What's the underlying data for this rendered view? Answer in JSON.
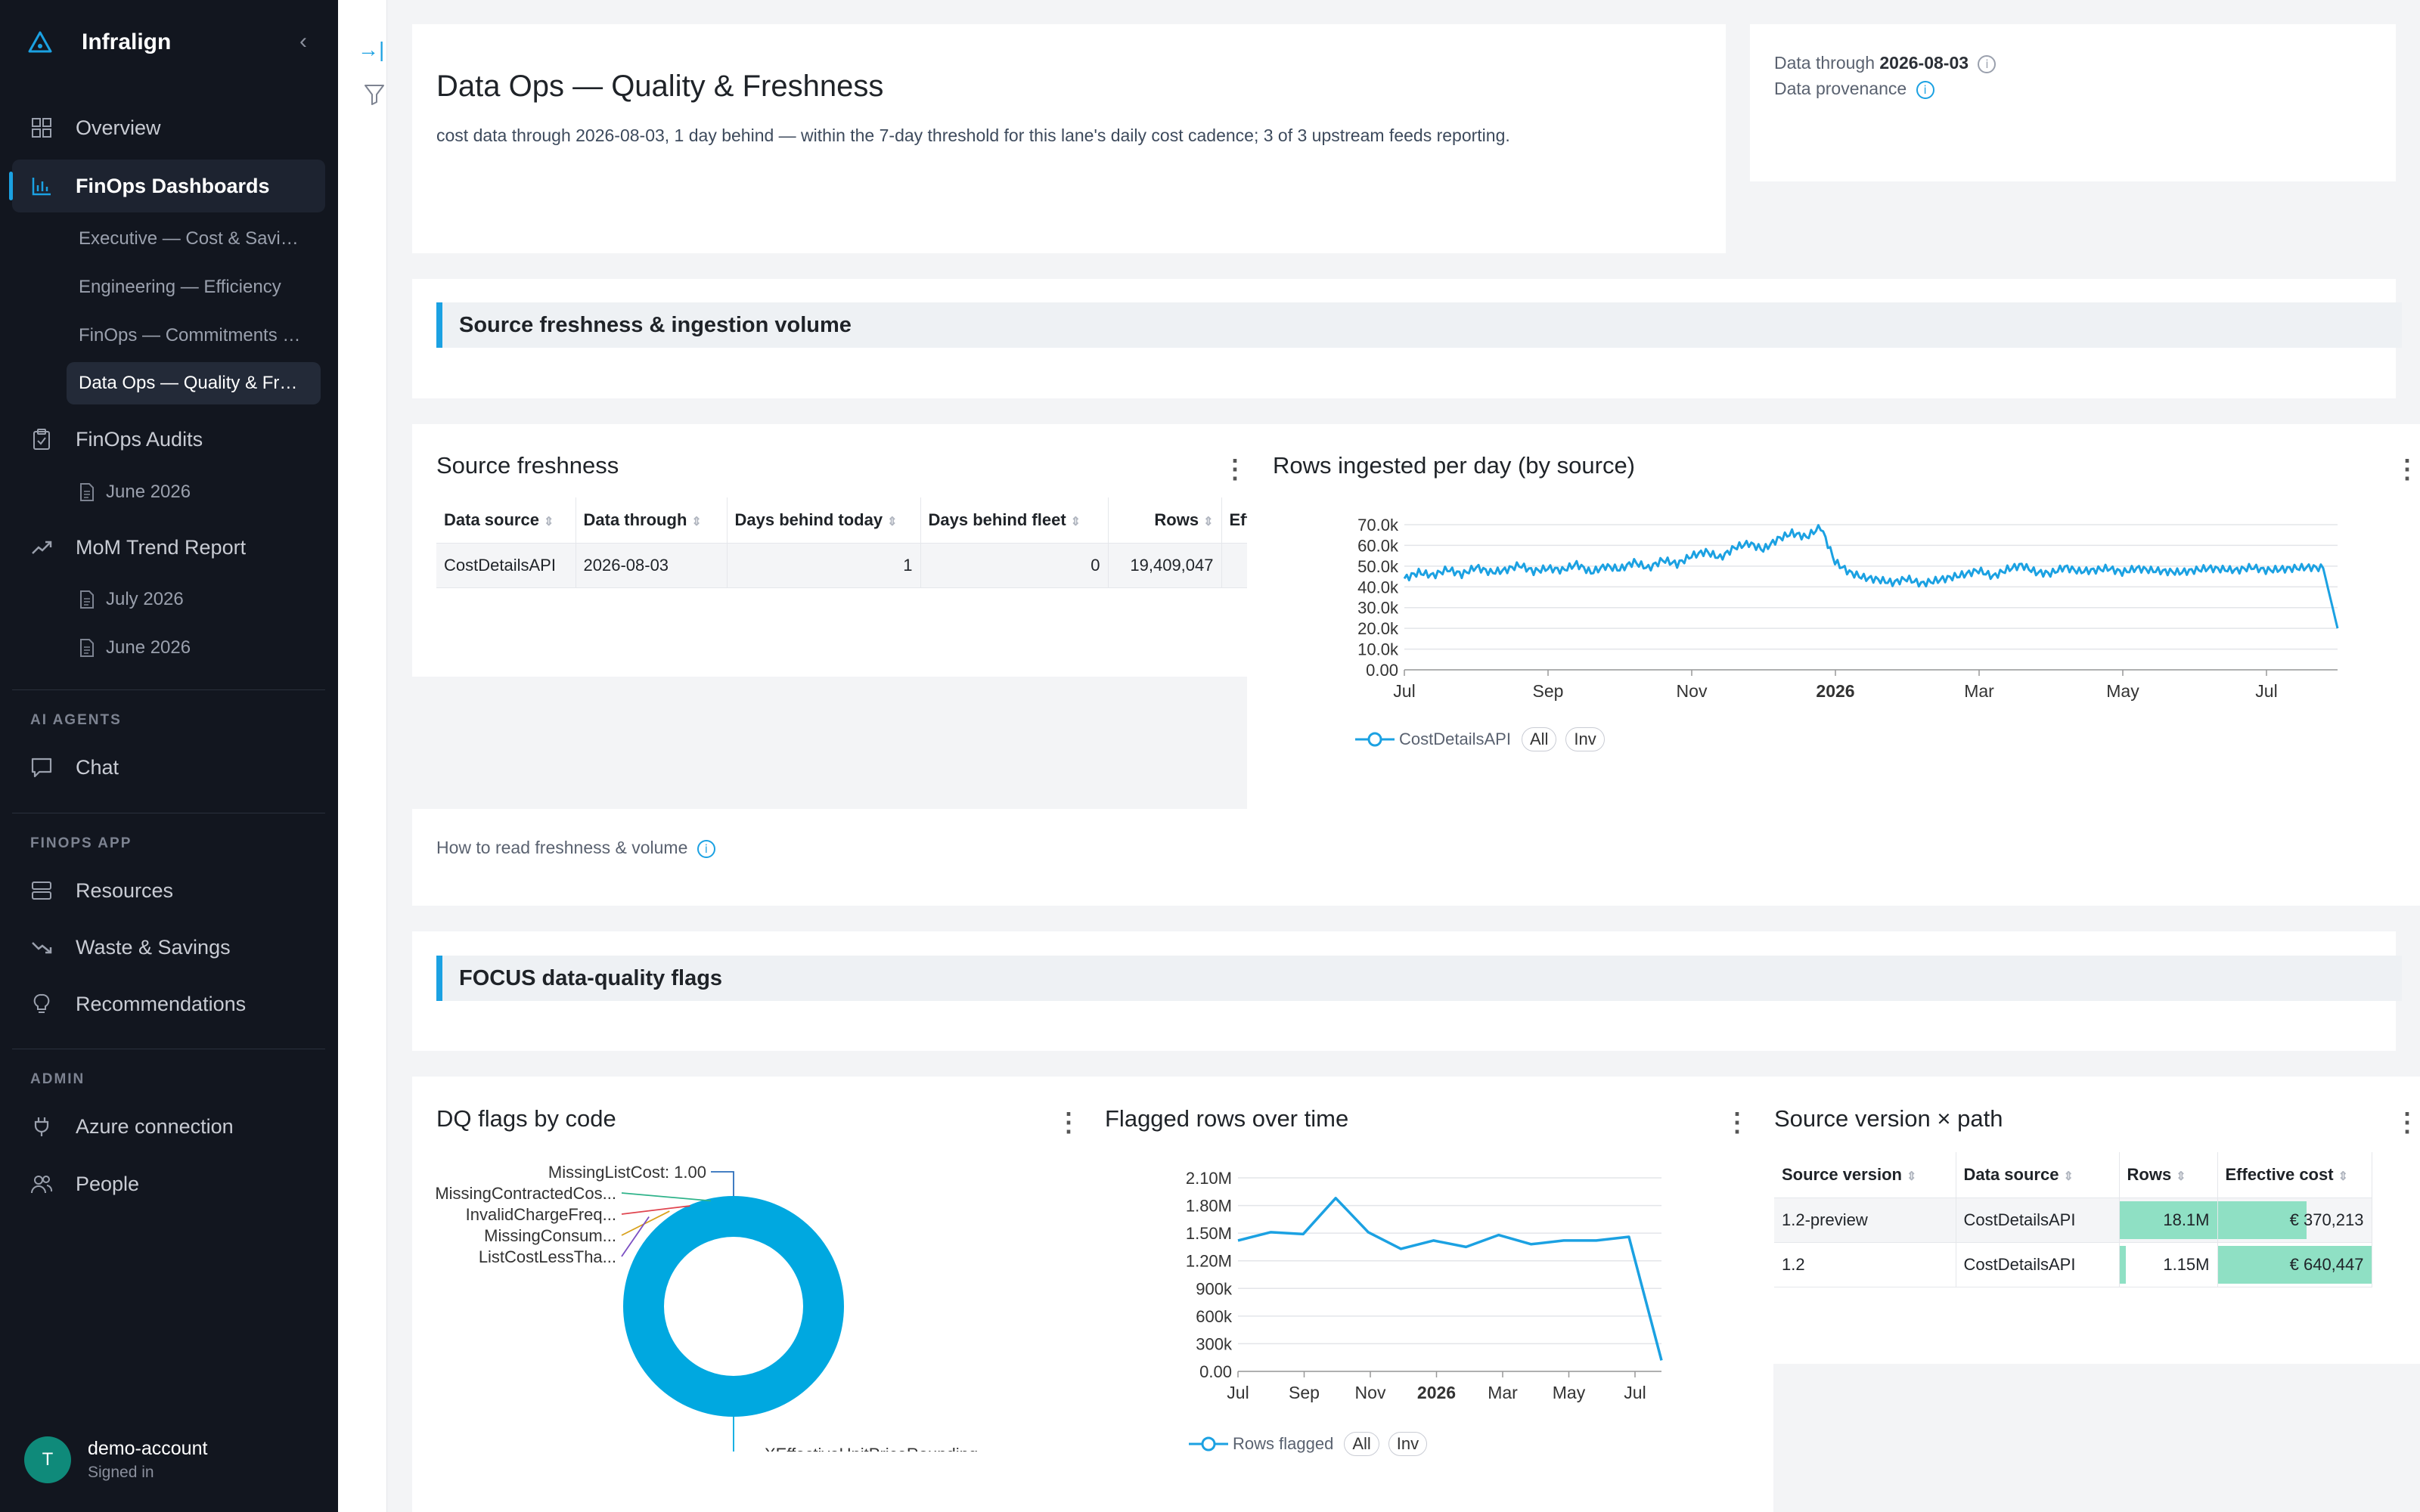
{
  "app": {
    "name": "Infralign"
  },
  "sidebar": {
    "overview": "Overview",
    "finops_dashboards": "FinOps Dashboards",
    "dashboards": [
      "Executive — Cost & Savings",
      "Engineering — Efficiency",
      "FinOps — Commitments & Rates",
      "Data Ops — Quality & Freshness"
    ],
    "finops_audits": "FinOps Audits",
    "audits": [
      "June 2026"
    ],
    "mom_trend": "MoM Trend Report",
    "mom_reports": [
      "July 2026",
      "June 2026"
    ],
    "section_ai": "AI AGENTS",
    "chat": "Chat",
    "section_app": "FINOPS APP",
    "resources": "Resources",
    "waste": "Waste & Savings",
    "recommendations": "Recommendations",
    "section_admin": "ADMIN",
    "azure": "Azure connection",
    "people": "People",
    "user": {
      "initial": "T",
      "name": "demo-account",
      "status": "Signed in"
    }
  },
  "header": {
    "title": "Data Ops — Quality & Freshness",
    "subtitle": "cost data through 2026-08-03, 1 day behind — within the 7-day threshold for this lane's daily cost cadence; 3 of 3 upstream feeds reporting.",
    "data_through_label": "Data through",
    "data_through_value": "2026-08-03",
    "provenance_label": "Data provenance"
  },
  "sections": {
    "freshness": "Source freshness & ingestion volume",
    "dq": "FOCUS data-quality flags",
    "howto": "How to read freshness & volume"
  },
  "freshness_table": {
    "title": "Source freshness",
    "columns": [
      "Data source",
      "Data through",
      "Days behind today",
      "Days behind fleet",
      "Rows",
      "Effec"
    ],
    "rows": [
      [
        "CostDetailsAPI",
        "2026-08-03",
        "1",
        "0",
        "19,409,047",
        ""
      ]
    ]
  },
  "version_table": {
    "title": "Source version × path",
    "columns": [
      "Source version",
      "Data source",
      "Rows",
      "Effective cost"
    ],
    "rows": [
      {
        "version": "1.2-preview",
        "source": "CostDetailsAPI",
        "rows": "18.1M",
        "rows_frac": 1.0,
        "cost": "€ 370,213",
        "cost_frac": 0.578
      },
      {
        "version": "1.2",
        "source": "CostDetailsAPI",
        "rows": "1.15M",
        "rows_frac": 0.064,
        "cost": "€ 640,447",
        "cost_frac": 1.0
      }
    ]
  },
  "legend": {
    "all": "All",
    "inv": "Inv"
  },
  "colors": {
    "accent": "#1ba1e2",
    "bar": "#8fe0c4",
    "sidebar": "#12161f"
  },
  "chart_data": [
    {
      "type": "line",
      "title": "Rows ingested per day (by source)",
      "x_ticks": [
        "Jul",
        "Sep",
        "Nov",
        "2026",
        "Mar",
        "May",
        "Jul"
      ],
      "y_ticks": [
        "0.00",
        "10.0k",
        "20.0k",
        "30.0k",
        "40.0k",
        "50.0k",
        "60.0k",
        "70.0k"
      ],
      "ylim": [
        0,
        70000
      ],
      "series": [
        {
          "name": "CostDetailsAPI",
          "values": [
            44000,
            47000,
            45500,
            48500,
            46000,
            49500,
            47000,
            48000,
            50500,
            47500,
            49000,
            48000,
            51000,
            47000,
            50000,
            48500,
            52000,
            49000,
            53000,
            51000,
            55000,
            57000,
            54000,
            59000,
            61000,
            58000,
            63000,
            66000,
            64000,
            69000,
            52000,
            47000,
            44500,
            43500,
            42000,
            44000,
            41500,
            43000,
            44500,
            46000,
            48000,
            45000,
            48500,
            50500,
            47000,
            46500,
            49500,
            47500,
            48000,
            49000,
            47000,
            49000,
            48000,
            47500,
            47000,
            48000,
            49000,
            48500,
            48000,
            49500,
            48000,
            48500,
            49000,
            49500,
            49000,
            20000
          ]
        }
      ],
      "grid": true,
      "legend": "bottom-left"
    },
    {
      "type": "pie",
      "title": "DQ flags by code",
      "categories": [
        "MissingListCost",
        "MissingContractedCos...",
        "InvalidChargeFreq...",
        "MissingConsum...",
        "ListCostLessTha...",
        "XEffectiveUnitPriceRounding..."
      ],
      "values": [
        1.0,
        1,
        1,
        1,
        1,
        990
      ],
      "annotations": [
        "MissingListCost: 1.00"
      ],
      "hole": true
    },
    {
      "type": "line",
      "title": "Flagged rows over time",
      "x_ticks": [
        "Jul",
        "Sep",
        "Nov",
        "2026",
        "Mar",
        "May",
        "Jul"
      ],
      "y_ticks": [
        "0.00",
        "300k",
        "600k",
        "900k",
        "1.20M",
        "1.50M",
        "1.80M",
        "2.10M"
      ],
      "ylim": [
        0,
        2100000
      ],
      "series": [
        {
          "name": "Rows flagged",
          "values": [
            1420000,
            1510000,
            1490000,
            1880000,
            1510000,
            1330000,
            1420000,
            1350000,
            1480000,
            1380000,
            1420000,
            1420000,
            1460000,
            120000
          ]
        }
      ],
      "grid": true,
      "legend": "bottom-left"
    }
  ]
}
